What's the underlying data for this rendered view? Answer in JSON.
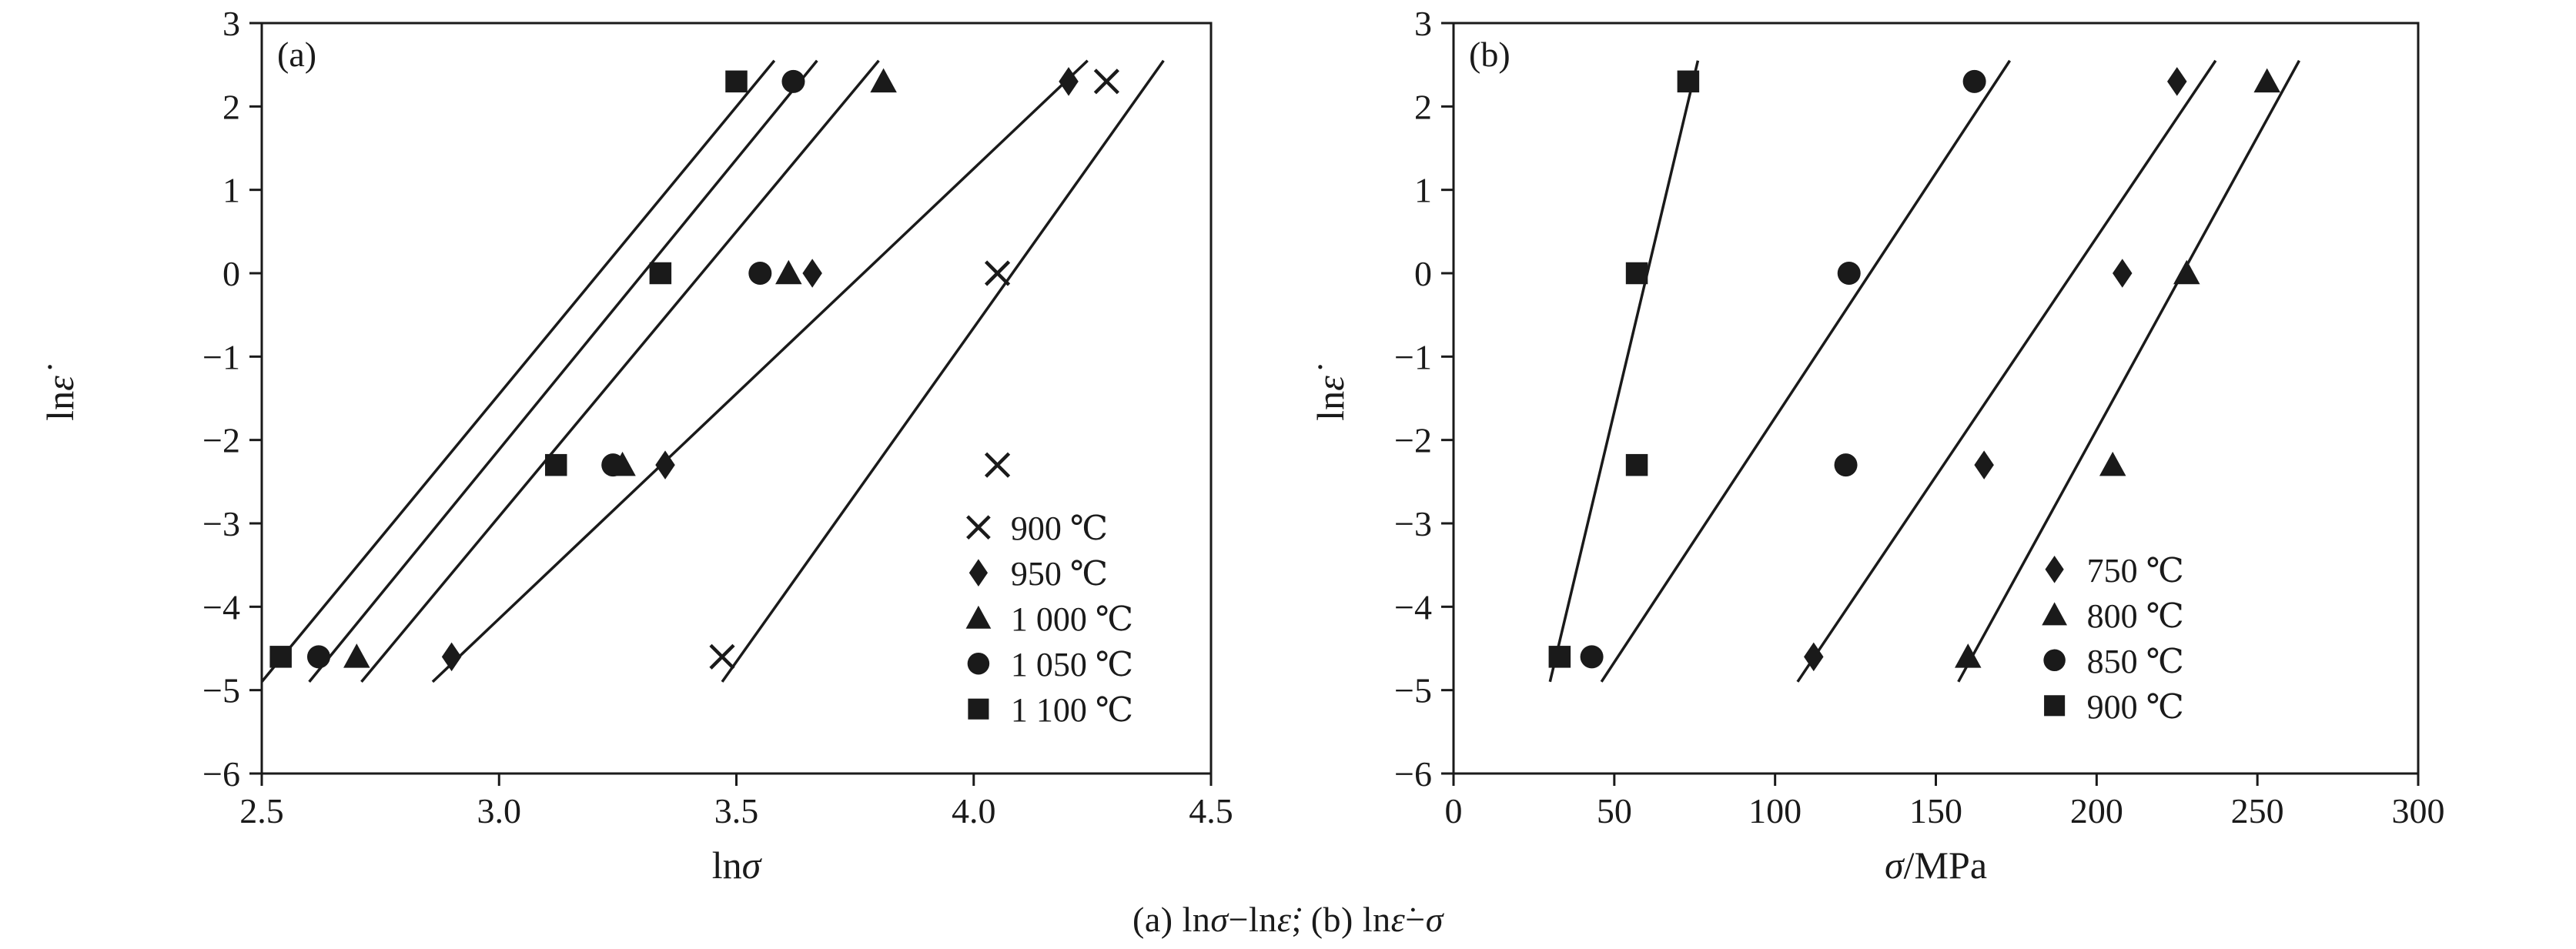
{
  "figure": {
    "caption": "(a) lnσ−lnε̇; (b) lnε̇−σ"
  },
  "chart_data": [
    {
      "type": "scatter",
      "panel_label": "(a)",
      "xlabel": "lnσ",
      "ylabel": "lnε̇",
      "xlim": [
        2.5,
        4.5
      ],
      "ylim": [
        -6,
        3
      ],
      "grid": false,
      "legend_position": "lower-right",
      "axis_color": "#1a1a1a",
      "xticks": [
        {
          "v": 2.5,
          "label": "2.5"
        },
        {
          "v": 3.0,
          "label": "3.0"
        },
        {
          "v": 3.5,
          "label": "3.5"
        },
        {
          "v": 4.0,
          "label": "4.0"
        },
        {
          "v": 4.5,
          "label": "4.5"
        }
      ],
      "yticks": [
        {
          "v": 3,
          "label": "3"
        },
        {
          "v": 2,
          "label": "2"
        },
        {
          "v": 1,
          "label": "1"
        },
        {
          "v": 0,
          "label": "0"
        },
        {
          "v": -1,
          "label": "−1"
        },
        {
          "v": -2,
          "label": "−2"
        },
        {
          "v": -3,
          "label": "−3"
        },
        {
          "v": -4,
          "label": "−4"
        },
        {
          "v": -5,
          "label": "−5"
        },
        {
          "v": -6,
          "label": "−6"
        }
      ],
      "series": [
        {
          "name": "900 ℃",
          "marker": "cross",
          "points": [
            [
              3.47,
              -4.6
            ],
            [
              4.05,
              -2.3
            ],
            [
              4.05,
              0
            ],
            [
              4.28,
              2.3
            ]
          ],
          "fit_line": [
            [
              3.47,
              -4.9
            ],
            [
              4.4,
              2.55
            ]
          ]
        },
        {
          "name": "950 ℃",
          "marker": "diamond",
          "points": [
            [
              2.9,
              -4.6
            ],
            [
              3.35,
              -2.3
            ],
            [
              3.66,
              0
            ],
            [
              4.2,
              2.3
            ]
          ],
          "fit_line": [
            [
              2.86,
              -4.9
            ],
            [
              4.24,
              2.55
            ]
          ]
        },
        {
          "name": "1 000 ℃",
          "marker": "triangle",
          "points": [
            [
              2.7,
              -4.6
            ],
            [
              3.26,
              -2.3
            ],
            [
              3.61,
              0
            ],
            [
              3.81,
              2.3
            ]
          ],
          "fit_line": [
            [
              2.71,
              -4.9
            ],
            [
              3.8,
              2.55
            ]
          ]
        },
        {
          "name": "1 050 ℃",
          "marker": "circle",
          "points": [
            [
              2.62,
              -4.6
            ],
            [
              3.24,
              -2.3
            ],
            [
              3.55,
              0
            ],
            [
              3.62,
              2.3
            ]
          ],
          "fit_line": [
            [
              2.6,
              -4.9
            ],
            [
              3.67,
              2.55
            ]
          ]
        },
        {
          "name": "1 100 ℃",
          "marker": "square",
          "points": [
            [
              2.54,
              -4.6
            ],
            [
              3.12,
              -2.3
            ],
            [
              3.34,
              0
            ],
            [
              3.5,
              2.3
            ]
          ],
          "fit_line": [
            [
              2.5,
              -4.9
            ],
            [
              3.58,
              2.55
            ]
          ]
        }
      ],
      "line_color": "#1a1a1a"
    },
    {
      "type": "scatter",
      "panel_label": "(b)",
      "xlabel": "σ/MPa",
      "ylabel": "lnε̇",
      "xlim": [
        0,
        300
      ],
      "ylim": [
        -6,
        3
      ],
      "grid": false,
      "legend_position": "lower-right",
      "axis_color": "#1a1a1a",
      "xticks": [
        {
          "v": 0,
          "label": "0"
        },
        {
          "v": 50,
          "label": "50"
        },
        {
          "v": 100,
          "label": "100"
        },
        {
          "v": 150,
          "label": "150"
        },
        {
          "v": 200,
          "label": "200"
        },
        {
          "v": 250,
          "label": "250"
        },
        {
          "v": 300,
          "label": "300"
        }
      ],
      "yticks": [
        {
          "v": 3,
          "label": "3"
        },
        {
          "v": 2,
          "label": "2"
        },
        {
          "v": 1,
          "label": "1"
        },
        {
          "v": 0,
          "label": "0"
        },
        {
          "v": -1,
          "label": "−1"
        },
        {
          "v": -2,
          "label": "−2"
        },
        {
          "v": -3,
          "label": "−3"
        },
        {
          "v": -4,
          "label": "−4"
        },
        {
          "v": -5,
          "label": "−5"
        },
        {
          "v": -6,
          "label": "−6"
        }
      ],
      "series": [
        {
          "name": "750 ℃",
          "marker": "diamond",
          "points": [
            [
              112,
              -4.6
            ],
            [
              165,
              -2.3
            ],
            [
              208,
              0
            ],
            [
              225,
              2.3
            ]
          ],
          "fit_line": [
            [
              107,
              -4.9
            ],
            [
              237,
              2.55
            ]
          ]
        },
        {
          "name": "800 ℃",
          "marker": "triangle",
          "points": [
            [
              160,
              -4.6
            ],
            [
              205,
              -2.3
            ],
            [
              228,
              0
            ],
            [
              253,
              2.3
            ]
          ],
          "fit_line": [
            [
              157,
              -4.9
            ],
            [
              263,
              2.55
            ]
          ]
        },
        {
          "name": "850 ℃",
          "marker": "circle",
          "points": [
            [
              43,
              -4.6
            ],
            [
              122,
              -2.3
            ],
            [
              123,
              0
            ],
            [
              162,
              2.3
            ]
          ],
          "fit_line": [
            [
              46,
              -4.9
            ],
            [
              173,
              2.55
            ]
          ]
        },
        {
          "name": "900 ℃",
          "marker": "square",
          "points": [
            [
              33,
              -4.6
            ],
            [
              57,
              -2.3
            ],
            [
              57,
              0
            ],
            [
              73,
              2.3
            ]
          ],
          "fit_line": [
            [
              30,
              -4.9
            ],
            [
              76,
              2.55
            ]
          ]
        }
      ],
      "line_color": "#1a1a1a"
    }
  ]
}
